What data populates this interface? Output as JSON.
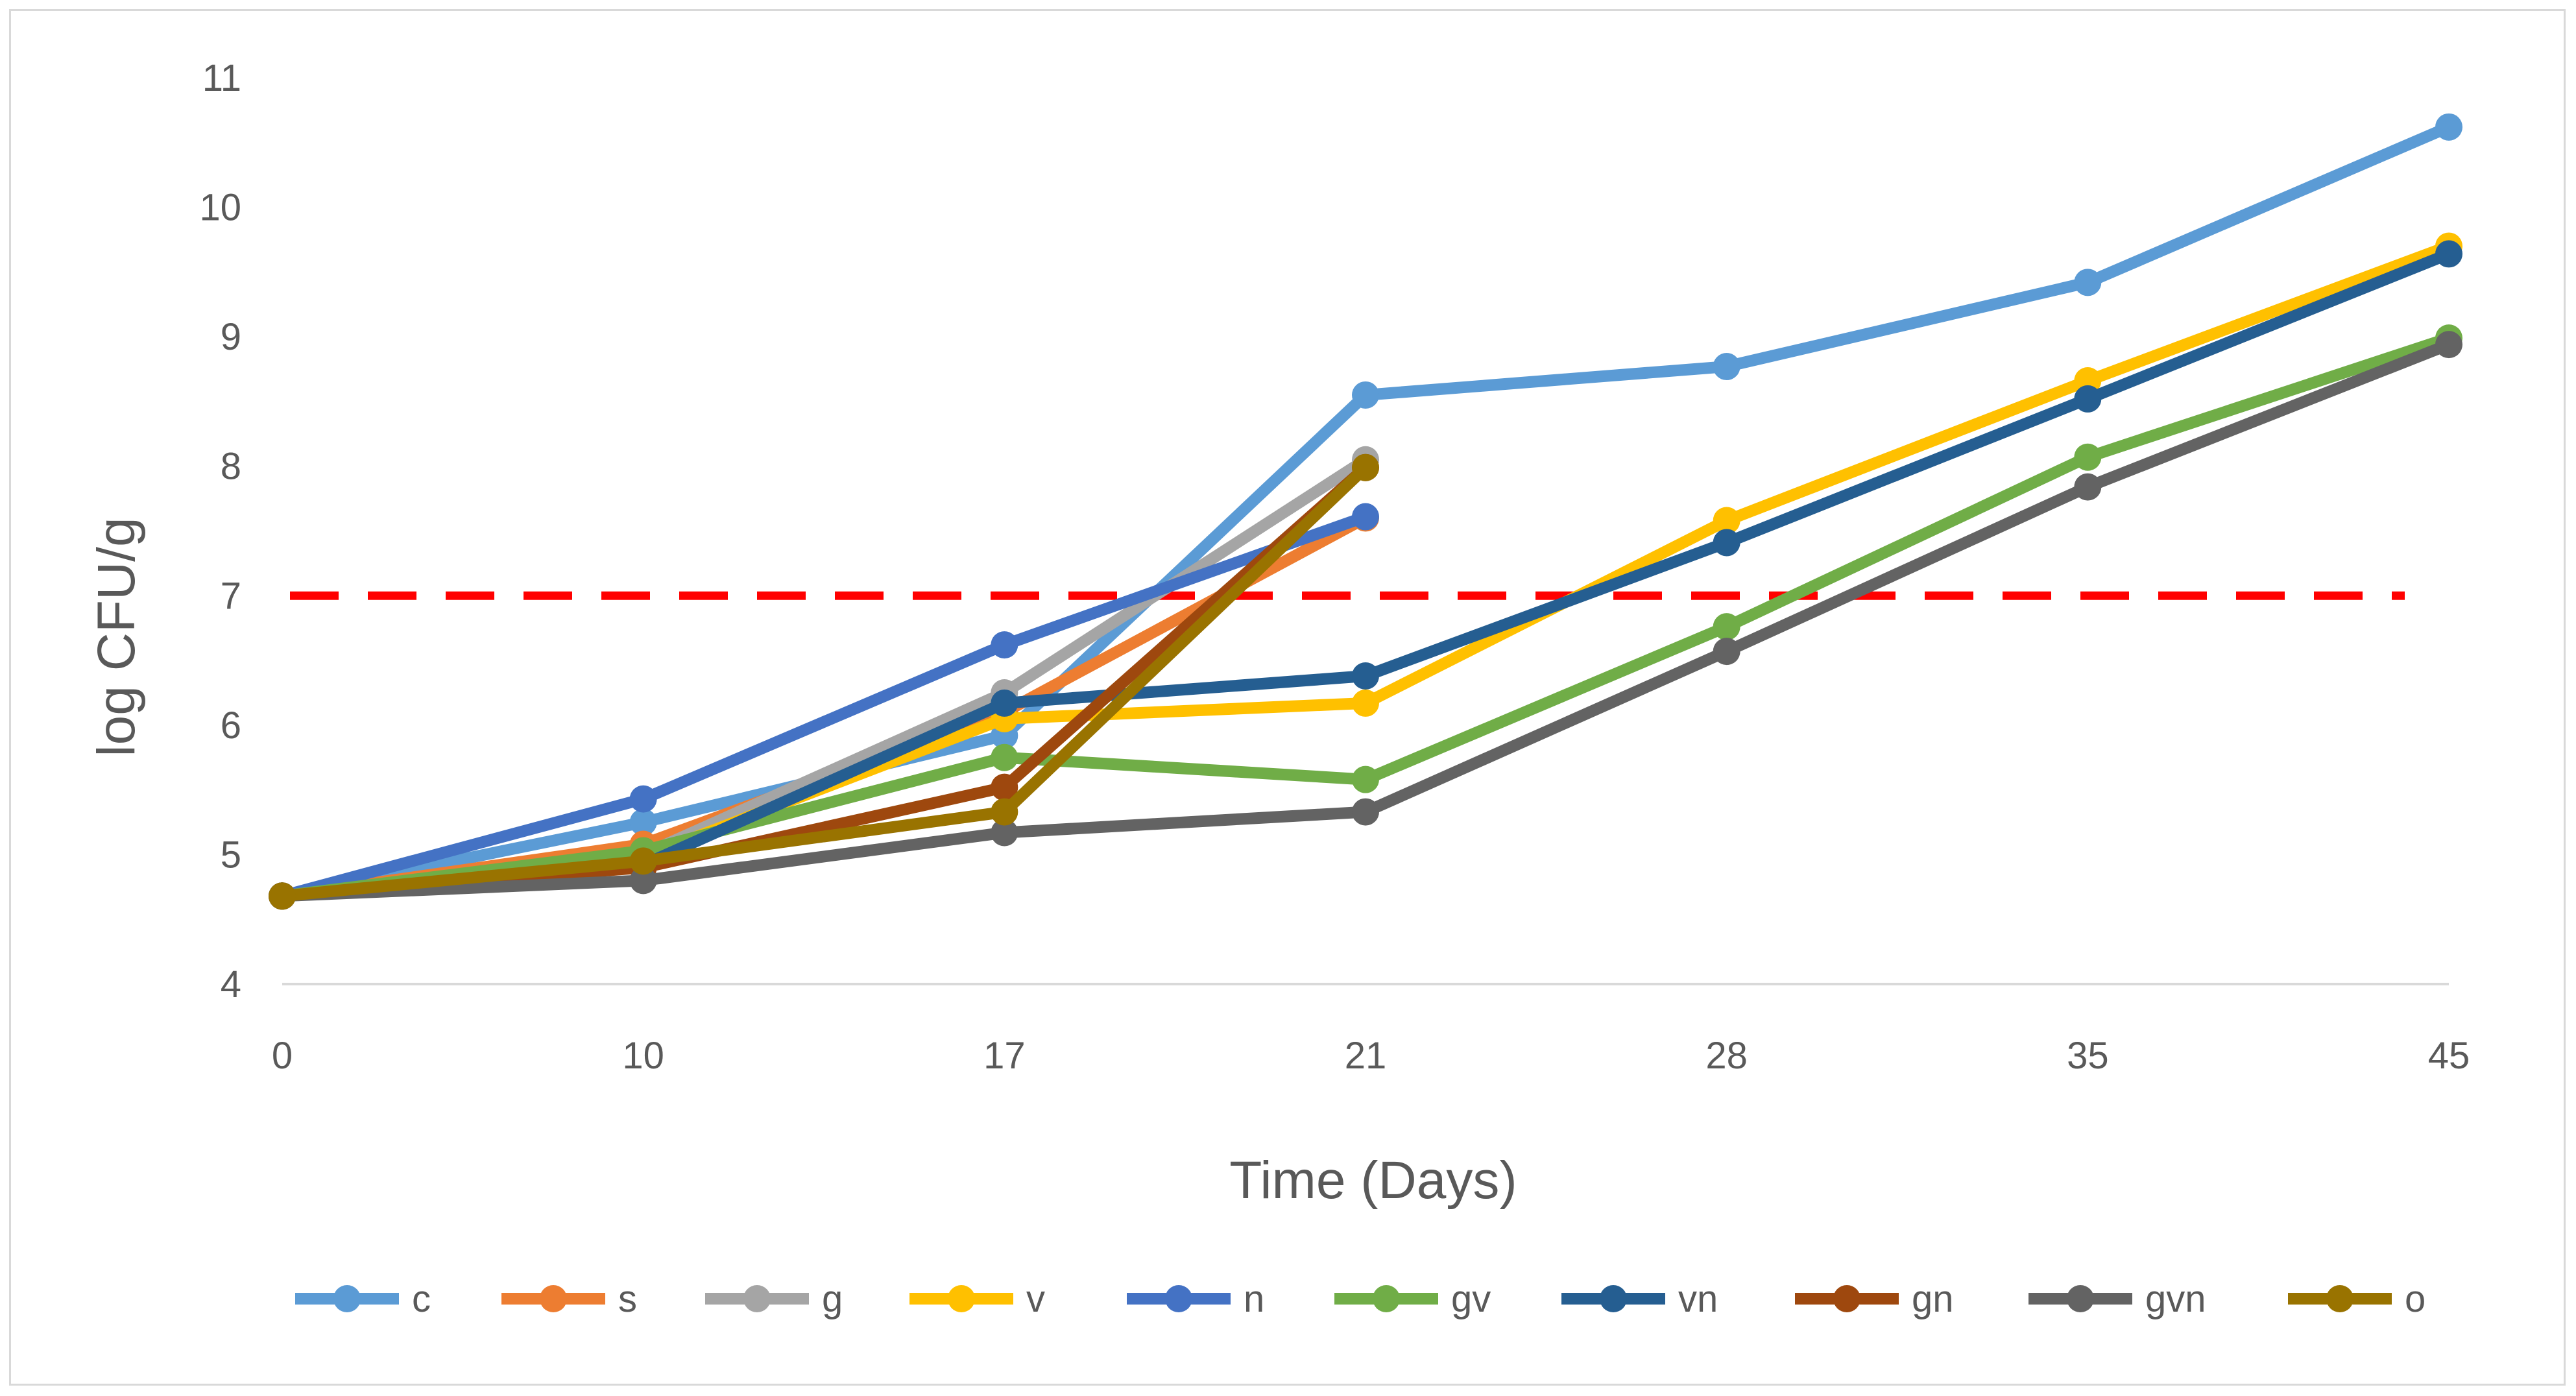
{
  "chart_data": {
    "type": "line",
    "title": "",
    "xlabel": "Time (Days)",
    "ylabel": "log CFU/g",
    "categories": [
      "0",
      "10",
      "17",
      "21",
      "28",
      "35",
      "45"
    ],
    "ylim": [
      4,
      11
    ],
    "yticks": [
      "4",
      "5",
      "6",
      "7",
      "8",
      "9",
      "10",
      "11"
    ],
    "grid": false,
    "legend_position": "bottom",
    "threshold": {
      "value": 7,
      "color": "#ff0000",
      "style": "dashed"
    },
    "series": [
      {
        "name": "c",
        "color": "#5b9bd5",
        "values": [
          4.68,
          5.25,
          5.92,
          8.55,
          8.77,
          9.42,
          10.62
        ]
      },
      {
        "name": "s",
        "color": "#ed7d31",
        "values": [
          4.68,
          5.08,
          6.1,
          7.6,
          null,
          null,
          null
        ]
      },
      {
        "name": "g",
        "color": "#a5a5a5",
        "values": [
          4.68,
          5.0,
          6.25,
          8.05,
          null,
          null,
          null
        ]
      },
      {
        "name": "v",
        "color": "#ffc000",
        "values": [
          4.68,
          4.98,
          6.05,
          6.17,
          7.58,
          8.66,
          9.7
        ]
      },
      {
        "name": "n",
        "color": "#4472c4",
        "values": [
          4.68,
          5.43,
          6.62,
          7.61,
          null,
          null,
          null
        ]
      },
      {
        "name": "gv",
        "color": "#70ad47",
        "values": [
          4.68,
          5.03,
          5.75,
          5.58,
          6.76,
          8.07,
          8.99
        ]
      },
      {
        "name": "vn",
        "color": "#255e91",
        "values": [
          4.68,
          4.92,
          6.17,
          6.38,
          7.41,
          8.52,
          9.64
        ]
      },
      {
        "name": "gn",
        "color": "#9e480e",
        "values": [
          4.68,
          4.9,
          5.52,
          7.99,
          null,
          null,
          null
        ]
      },
      {
        "name": "gvn",
        "color": "#636363",
        "values": [
          4.68,
          4.8,
          5.17,
          5.33,
          6.57,
          7.84,
          8.94
        ]
      },
      {
        "name": "o",
        "color": "#997300",
        "values": [
          4.68,
          4.95,
          5.33,
          7.99,
          null,
          null,
          null
        ]
      }
    ]
  }
}
